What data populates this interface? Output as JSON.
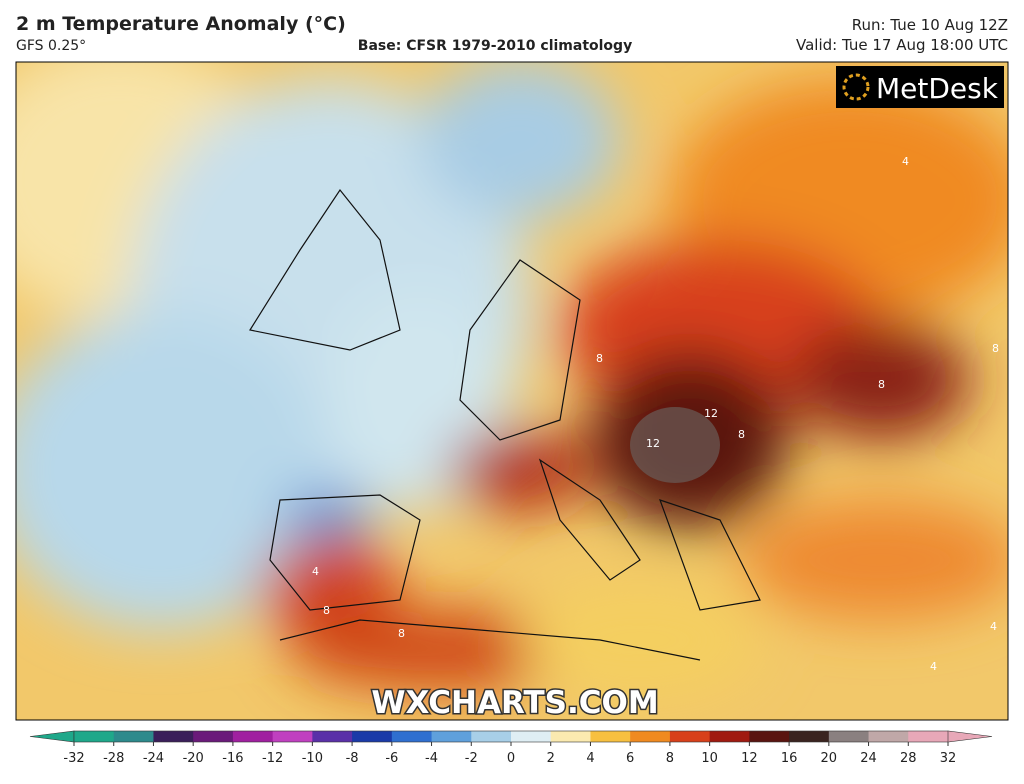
{
  "header": {
    "title": "2 m Temperature Anomaly (°C)",
    "model": "GFS 0.25°",
    "base": "Base: CFSR 1979-2010 climatology",
    "run": "Run: Tue 10 Aug 12Z",
    "valid": "Valid: Tue 17 Aug 18:00 UTC"
  },
  "logo": "MetDesk",
  "watermark": "WXCHARTS.COM",
  "contour_labels": [
    12,
    12,
    8,
    8,
    8,
    8,
    8,
    4,
    4,
    4,
    8,
    4
  ],
  "colorbar": {
    "ticks": [
      -32,
      -28,
      -24,
      -20,
      -16,
      -12,
      -10,
      -8,
      -6,
      -4,
      -2,
      0,
      2,
      4,
      6,
      8,
      10,
      12,
      16,
      20,
      24,
      28,
      32
    ],
    "colors": [
      "#1fa88a",
      "#2d8a8c",
      "#3a1f5a",
      "#6a1a7a",
      "#a020a0",
      "#c040c0",
      "#5a30a8",
      "#1a3aa8",
      "#2f6fd0",
      "#5fa0dc",
      "#a8cfe8",
      "#dfeef4",
      "#fbeab0",
      "#f7c040",
      "#f08a20",
      "#d8401a",
      "#a01a10",
      "#5a1410",
      "#3a2420",
      "#8a8080",
      "#c0a8a8",
      "#e8a8b8"
    ]
  }
}
